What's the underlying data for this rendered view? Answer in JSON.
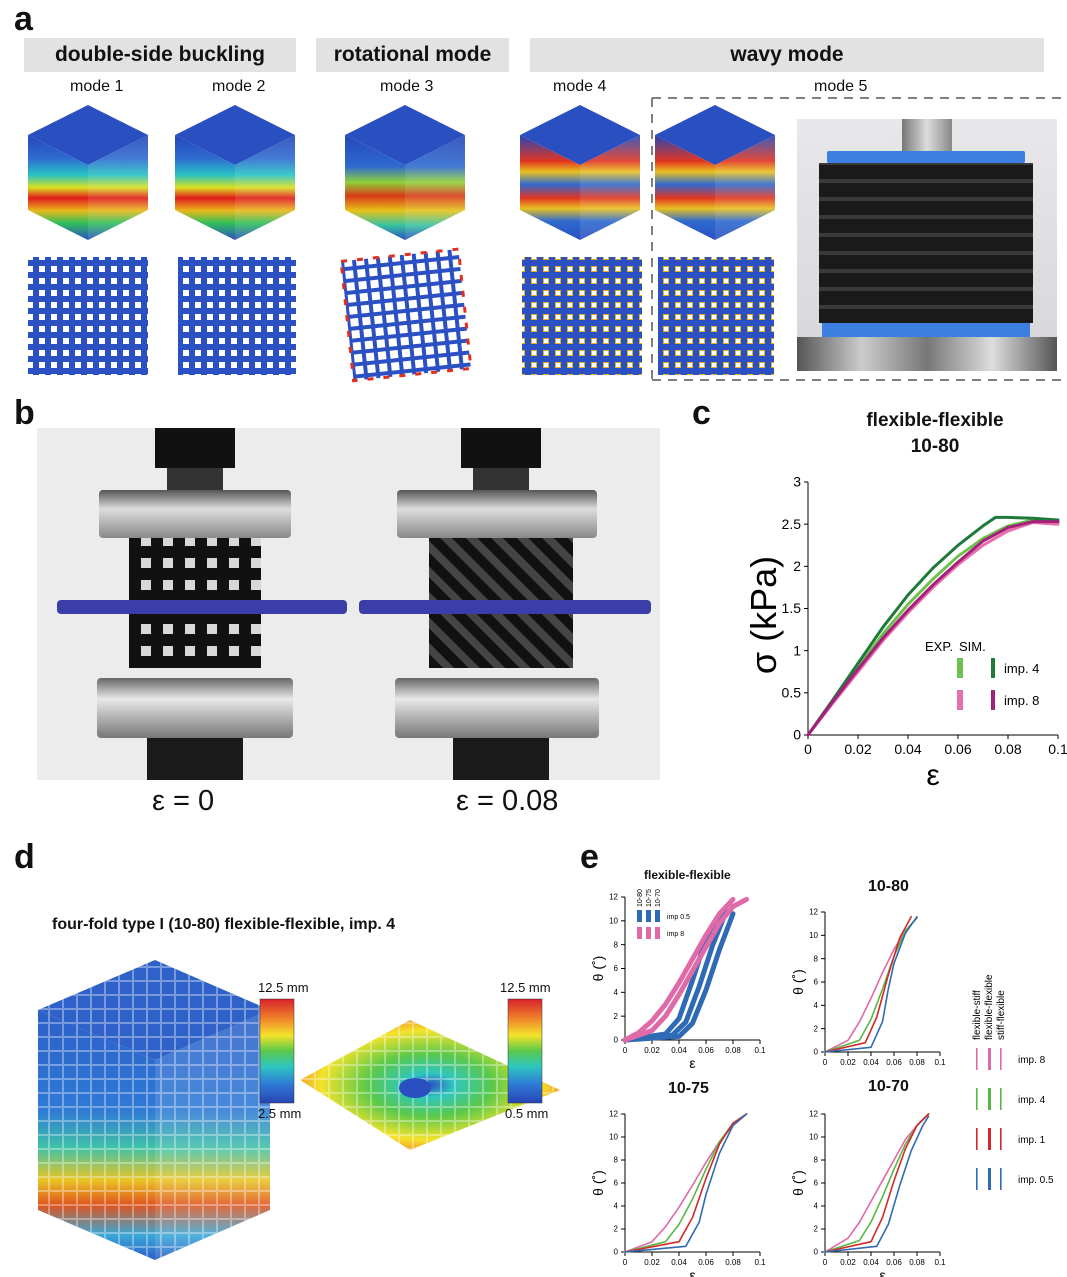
{
  "panels": {
    "a": {
      "label": "a",
      "groups": [
        "double-side buckling",
        "rotational mode",
        "wavy mode"
      ],
      "modes": [
        "mode 1",
        "mode 2",
        "mode 3",
        "mode 4",
        "mode 5"
      ]
    },
    "b": {
      "label": "b",
      "strains": [
        "ε = 0",
        "ε = 0.08"
      ]
    },
    "c": {
      "label": "c",
      "title_line1": "flexible-flexible",
      "title_line2": "10-80",
      "legend": {
        "exp": "EXP.",
        "sim": "SIM.",
        "imp4": "imp. 4",
        "imp8": "imp. 8"
      }
    },
    "d": {
      "label": "d",
      "title": "four-fold type I (10-80) flexible-flexible, imp. 4",
      "scale1": {
        "max": "12.5 mm",
        "min": "2.5 mm"
      },
      "scale2": {
        "max": "12.5 mm",
        "min": "0.5 mm"
      }
    },
    "e": {
      "label": "e",
      "titles": [
        "flexible-flexible",
        "10-80",
        "10-75",
        "10-70"
      ],
      "sub_legend": {
        "cols": [
          "10-80",
          "10-75",
          "10-70"
        ],
        "imp05": "imp 0.5",
        "imp8": "imp 8"
      },
      "side_legend": {
        "cols": [
          "flexible-stiff",
          "flexible-flexible",
          "stiff-flexible"
        ],
        "rows": [
          "imp. 8",
          "imp. 4",
          "imp. 1",
          "imp. 0.5"
        ]
      },
      "ylabel": "θ (˚)",
      "xlabel": "ε"
    }
  },
  "colors": {
    "banner": "#e2e2e2",
    "exp_imp4": "#6cc24a",
    "sim_imp4": "#1f7a3a",
    "exp_imp8": "#e86fae",
    "sim_imp8": "#a3217a",
    "blue": "#2f6bb5",
    "pink": "#e06aa8",
    "green": "#58b845",
    "red": "#d22a2a"
  },
  "chart_data": [
    {
      "type": "line",
      "title": "flexible-flexible 10-80",
      "xlabel": "ε",
      "ylabel": "σ (kPa)",
      "xlim": [
        0,
        0.1
      ],
      "ylim": [
        0,
        3
      ],
      "xticks": [
        "0",
        "0.02",
        "0.04",
        "0.06",
        "0.08",
        "0.1"
      ],
      "yticks": [
        "0",
        "0.5",
        "1",
        "1.5",
        "2",
        "2.5",
        "3"
      ],
      "series": [
        {
          "name": "EXP. imp. 4",
          "color": "#6cc24a",
          "x": [
            0,
            0.01,
            0.02,
            0.03,
            0.04,
            0.05,
            0.06,
            0.07,
            0.08,
            0.09,
            0.1
          ],
          "y": [
            0,
            0.4,
            0.8,
            1.2,
            1.55,
            1.85,
            2.12,
            2.33,
            2.48,
            2.55,
            2.52
          ]
        },
        {
          "name": "SIM. imp. 4",
          "color": "#1f7a3a",
          "x": [
            0,
            0.01,
            0.02,
            0.03,
            0.04,
            0.05,
            0.06,
            0.07,
            0.075,
            0.08,
            0.09,
            0.1
          ],
          "y": [
            0,
            0.42,
            0.85,
            1.28,
            1.66,
            1.98,
            2.25,
            2.48,
            2.58,
            2.58,
            2.57,
            2.55
          ]
        },
        {
          "name": "EXP. imp. 8",
          "color": "#e86fae",
          "x": [
            0,
            0.01,
            0.02,
            0.03,
            0.04,
            0.05,
            0.06,
            0.07,
            0.08,
            0.09,
            0.1
          ],
          "y": [
            0,
            0.38,
            0.75,
            1.12,
            1.45,
            1.75,
            2.02,
            2.25,
            2.42,
            2.52,
            2.5
          ]
        },
        {
          "name": "SIM. imp. 8",
          "color": "#a3217a",
          "x": [
            0,
            0.01,
            0.02,
            0.03,
            0.04,
            0.05,
            0.06,
            0.07,
            0.08,
            0.09,
            0.1
          ],
          "y": [
            0,
            0.4,
            0.78,
            1.15,
            1.48,
            1.78,
            2.05,
            2.3,
            2.46,
            2.53,
            2.53
          ]
        }
      ]
    },
    {
      "type": "line",
      "title": "flexible-flexible",
      "xlabel": "ε",
      "ylabel": "θ (˚)",
      "xlim": [
        0,
        0.1
      ],
      "ylim": [
        0,
        12
      ],
      "series": [
        {
          "name": "imp 0.5",
          "color": "#2f6bb5",
          "x": [
            0,
            0.03,
            0.04,
            0.05,
            0.06,
            0.07
          ],
          "y": [
            0,
            0.5,
            1.8,
            5,
            8.5,
            10.5
          ]
        },
        {
          "name": "imp 0.5",
          "color": "#2f6bb5",
          "x": [
            0,
            0.035,
            0.045,
            0.055,
            0.065,
            0.075
          ],
          "y": [
            0,
            0.4,
            1.5,
            4.5,
            8,
            10.8
          ]
        },
        {
          "name": "imp 0.5",
          "color": "#2f6bb5",
          "x": [
            0,
            0.04,
            0.05,
            0.06,
            0.07,
            0.08
          ],
          "y": [
            0,
            0.3,
            1.4,
            4.2,
            7.6,
            10.6
          ]
        },
        {
          "name": "imp 8",
          "color": "#e06aa8",
          "x": [
            0,
            0.01,
            0.02,
            0.03,
            0.04,
            0.05,
            0.06,
            0.07,
            0.08
          ],
          "y": [
            0,
            0.6,
            1.6,
            3,
            4.8,
            6.8,
            8.8,
            10.6,
            11.8
          ]
        },
        {
          "name": "imp 8",
          "color": "#e06aa8",
          "x": [
            0,
            0.02,
            0.03,
            0.04,
            0.05,
            0.06,
            0.07,
            0.08,
            0.09
          ],
          "y": [
            0,
            0.8,
            2,
            3.8,
            5.8,
            7.8,
            9.8,
            11.2,
            11.8
          ]
        }
      ]
    },
    {
      "type": "line",
      "title": "10-80",
      "xlabel": "ε",
      "ylabel": "θ (˚)",
      "xlim": [
        0,
        0.1
      ],
      "ylim": [
        0,
        12
      ],
      "series": [
        {
          "name": "imp. 8",
          "color": "#e06aa8",
          "x": [
            0,
            0.02,
            0.03,
            0.04,
            0.05,
            0.06,
            0.07,
            0.08
          ],
          "y": [
            0,
            1,
            2.6,
            4.6,
            6.8,
            8.8,
            10.4,
            11.5
          ]
        },
        {
          "name": "imp. 4",
          "color": "#58b845",
          "x": [
            0,
            0.03,
            0.04,
            0.05,
            0.06,
            0.07,
            0.08
          ],
          "y": [
            0,
            1,
            2.8,
            5.4,
            8.2,
            10.4,
            11.5
          ]
        },
        {
          "name": "imp. 1",
          "color": "#d22a2a",
          "x": [
            0,
            0.035,
            0.045,
            0.055,
            0.065,
            0.075
          ],
          "y": [
            0,
            0.8,
            3,
            6.6,
            9.8,
            11.6
          ]
        },
        {
          "name": "imp. 0.5",
          "color": "#2f6bb5",
          "x": [
            0,
            0.04,
            0.05,
            0.055,
            0.06,
            0.07,
            0.08
          ],
          "y": [
            0,
            0.4,
            2.6,
            5.4,
            7.6,
            10.2,
            11.6
          ]
        }
      ]
    },
    {
      "type": "line",
      "title": "10-75",
      "xlabel": "ε",
      "ylabel": "θ (˚)",
      "xlim": [
        0,
        0.1
      ],
      "ylim": [
        0,
        12
      ],
      "series": [
        {
          "name": "imp. 8",
          "color": "#e06aa8",
          "x": [
            0,
            0.02,
            0.03,
            0.04,
            0.05,
            0.06,
            0.07,
            0.08,
            0.09
          ],
          "y": [
            0,
            0.9,
            2.2,
            3.9,
            5.8,
            7.8,
            9.6,
            11,
            12
          ]
        },
        {
          "name": "imp. 4",
          "color": "#58b845",
          "x": [
            0,
            0.03,
            0.04,
            0.05,
            0.06,
            0.07,
            0.08,
            0.09
          ],
          "y": [
            0,
            0.9,
            2.4,
            4.6,
            7.2,
            9.6,
            11.2,
            12
          ]
        },
        {
          "name": "imp. 1",
          "color": "#d22a2a",
          "x": [
            0,
            0.04,
            0.05,
            0.06,
            0.07,
            0.08,
            0.09
          ],
          "y": [
            0,
            0.9,
            3,
            6.4,
            9.4,
            11.2,
            12
          ]
        },
        {
          "name": "imp. 0.5",
          "color": "#2f6bb5",
          "x": [
            0,
            0.045,
            0.055,
            0.06,
            0.07,
            0.08,
            0.09
          ],
          "y": [
            0,
            0.5,
            2.6,
            5,
            8.6,
            11,
            12
          ]
        }
      ]
    },
    {
      "type": "line",
      "title": "10-70",
      "xlabel": "ε",
      "ylabel": "θ (˚)",
      "xlim": [
        0,
        0.1
      ],
      "ylim": [
        0,
        12
      ],
      "series": [
        {
          "name": "imp. 8",
          "color": "#e06aa8",
          "x": [
            0,
            0.02,
            0.03,
            0.04,
            0.05,
            0.06,
            0.07,
            0.08,
            0.09
          ],
          "y": [
            0,
            1.2,
            2.6,
            4.4,
            6.2,
            8,
            9.8,
            11,
            12
          ]
        },
        {
          "name": "imp. 4",
          "color": "#58b845",
          "x": [
            0,
            0.03,
            0.04,
            0.05,
            0.06,
            0.07,
            0.08,
            0.09
          ],
          "y": [
            0,
            1,
            2.6,
            4.8,
            7.2,
            9.4,
            11,
            12
          ]
        },
        {
          "name": "imp. 1",
          "color": "#d22a2a",
          "x": [
            0,
            0.04,
            0.05,
            0.06,
            0.07,
            0.08,
            0.09
          ],
          "y": [
            0,
            0.9,
            3,
            6.2,
            9,
            11,
            12
          ]
        },
        {
          "name": "imp. 0.5",
          "color": "#2f6bb5",
          "x": [
            0,
            0.045,
            0.055,
            0.065,
            0.075,
            0.085,
            0.09
          ],
          "y": [
            0,
            0.5,
            2.4,
            5.8,
            8.8,
            11,
            11.8
          ]
        }
      ]
    }
  ]
}
